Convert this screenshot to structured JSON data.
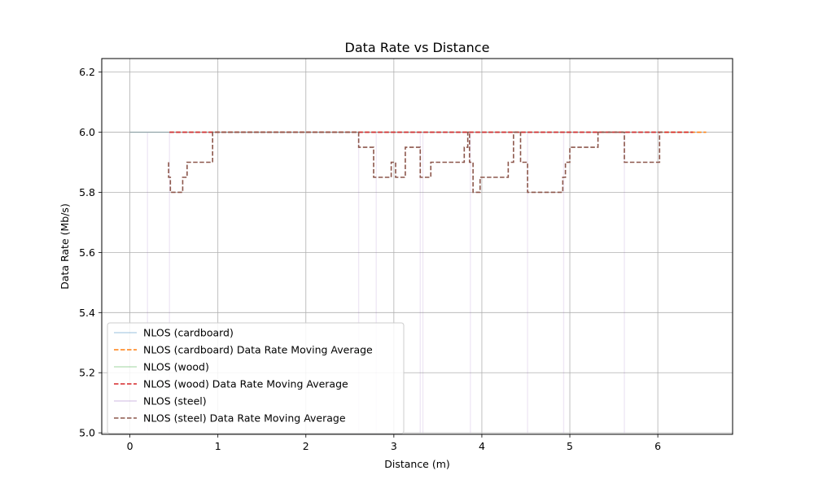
{
  "chart_data": {
    "type": "line",
    "title": "Data Rate vs Distance",
    "xlabel": "Distance (m)",
    "ylabel": "Data Rate (Mb/s)",
    "xlim": [
      -0.32,
      6.85
    ],
    "ylim": [
      4.995,
      6.245
    ],
    "xticks": [
      0,
      1,
      2,
      3,
      4,
      5,
      6
    ],
    "yticks": [
      5.0,
      5.2,
      5.4,
      5.6,
      5.8,
      6.0,
      6.2
    ],
    "ytick_labels": [
      "5.0",
      "5.2",
      "5.4",
      "5.6",
      "5.8",
      "6.0",
      "6.2"
    ],
    "grid": true,
    "legend_position": "lower-left",
    "series": [
      {
        "name": "NLOS (cardboard)",
        "style": "solid-faint",
        "color": "#1f77b4",
        "x": [
          0,
          6.55
        ],
        "y": [
          6.0,
          6.0
        ]
      },
      {
        "name": "NLOS (cardboard) Data Rate Moving Average",
        "style": "dashed",
        "color": "#ff7f0e",
        "x": [
          0.45,
          6.55
        ],
        "y": [
          6.0,
          6.0
        ]
      },
      {
        "name": "NLOS (wood)",
        "style": "solid-faint",
        "color": "#2ca02c",
        "x": [
          0,
          6.4
        ],
        "y": [
          6.0,
          6.0
        ]
      },
      {
        "name": "NLOS (wood) Data Rate Moving Average",
        "style": "dashed",
        "color": "#d62728",
        "x": [
          0.45,
          6.4
        ],
        "y": [
          6.0,
          6.0
        ]
      },
      {
        "name": "NLOS (steel)",
        "style": "solid-faint",
        "color": "#9467bd",
        "x": [
          0,
          0.2,
          0.2,
          0.2,
          0.45,
          0.45,
          0.45,
          2.6,
          2.6,
          2.6,
          2.8,
          2.8,
          2.8,
          3.3,
          3.3,
          3.3,
          3.33,
          3.33,
          3.33,
          3.87,
          3.87,
          3.87,
          4.52,
          4.52,
          4.52,
          4.93,
          4.93,
          4.93,
          5.62,
          5.62,
          5.62,
          6.05
        ],
        "y": [
          6.0,
          6.0,
          5.0,
          6.0,
          6.0,
          5.0,
          6.0,
          6.0,
          5.0,
          6.0,
          6.0,
          5.0,
          6.0,
          6.0,
          5.0,
          6.0,
          6.0,
          5.0,
          6.0,
          6.0,
          5.0,
          6.0,
          6.0,
          5.0,
          6.0,
          6.0,
          5.0,
          6.0,
          6.0,
          5.0,
          6.0,
          6.0
        ]
      },
      {
        "name": "NLOS (steel) Data Rate Moving Average",
        "style": "dashed",
        "color": "#8c564b",
        "x": [
          0.44,
          0.44,
          0.46,
          0.46,
          0.6,
          0.6,
          0.65,
          0.65,
          0.94,
          0.94,
          2.6,
          2.6,
          2.77,
          2.77,
          2.97,
          2.97,
          3.02,
          3.02,
          3.13,
          3.13,
          3.3,
          3.3,
          3.42,
          3.42,
          3.8,
          3.8,
          3.84,
          3.84,
          3.86,
          3.86,
          3.9,
          3.9,
          3.98,
          3.98,
          4.3,
          4.3,
          4.36,
          4.36,
          4.44,
          4.44,
          4.52,
          4.52,
          4.92,
          4.92,
          4.95,
          4.95,
          5.0,
          5.0,
          5.32,
          5.32,
          5.62,
          5.62,
          6.02,
          6.02,
          6.05
        ],
        "y": [
          5.9,
          5.85,
          5.85,
          5.8,
          5.8,
          5.85,
          5.85,
          5.9,
          5.9,
          6.0,
          6.0,
          5.95,
          5.95,
          5.85,
          5.85,
          5.9,
          5.9,
          5.85,
          5.85,
          5.95,
          5.95,
          5.85,
          5.85,
          5.9,
          5.9,
          5.95,
          5.95,
          6.0,
          6.0,
          5.9,
          5.9,
          5.8,
          5.8,
          5.85,
          5.85,
          5.9,
          5.9,
          6.0,
          6.0,
          5.9,
          5.9,
          5.8,
          5.8,
          5.85,
          5.85,
          5.9,
          5.9,
          5.95,
          5.95,
          6.0,
          6.0,
          5.9,
          5.9,
          6.0,
          6.0
        ]
      }
    ]
  }
}
